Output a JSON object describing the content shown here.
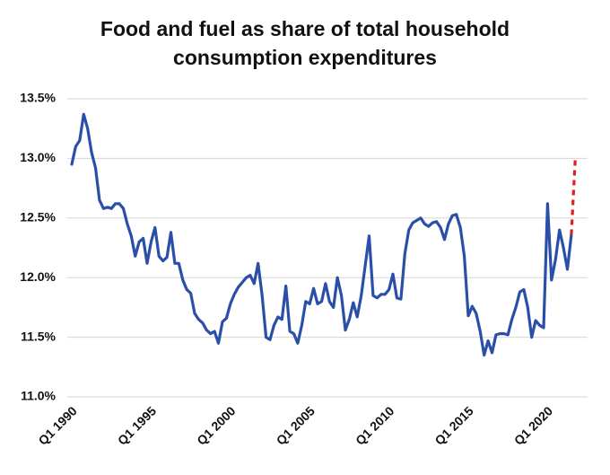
{
  "chart_data": {
    "type": "line",
    "title": "Food and fuel as share of total household consumption expenditures",
    "categories": [
      "Q1 1990",
      null,
      null,
      null,
      null,
      null,
      null,
      null,
      null,
      null,
      null,
      null,
      null,
      null,
      null,
      null,
      null,
      null,
      null,
      null,
      "Q1 1995",
      null,
      null,
      null,
      null,
      null,
      null,
      null,
      null,
      null,
      null,
      null,
      null,
      null,
      null,
      null,
      null,
      null,
      null,
      null,
      "Q1 2000",
      null,
      null,
      null,
      null,
      null,
      null,
      null,
      null,
      null,
      null,
      null,
      null,
      null,
      null,
      null,
      null,
      null,
      null,
      null,
      "Q1 2005",
      null,
      null,
      null,
      null,
      null,
      null,
      null,
      null,
      null,
      null,
      null,
      null,
      null,
      null,
      null,
      null,
      null,
      null,
      null,
      "Q1 2010",
      null,
      null,
      null,
      null,
      null,
      null,
      null,
      null,
      null,
      null,
      null,
      null,
      null,
      null,
      null,
      null,
      null,
      null,
      null,
      "Q1 2015",
      null,
      null,
      null,
      null,
      null,
      null,
      null,
      null,
      null,
      null,
      null,
      null,
      null,
      null,
      null,
      null,
      null,
      null,
      null,
      "Q1 2020",
      null,
      null,
      null,
      null,
      null,
      null,
      null
    ],
    "series": [
      {
        "color": "#2a4fa8",
        "dashed": false,
        "values": [
          12.95,
          13.1,
          13.15,
          13.37,
          13.25,
          13.05,
          12.92,
          12.65,
          12.58,
          12.59,
          12.58,
          12.62,
          12.62,
          12.58,
          12.45,
          12.35,
          12.18,
          12.3,
          12.33,
          12.12,
          12.3,
          12.42,
          12.18,
          12.14,
          12.17,
          12.38,
          12.12,
          12.12,
          11.98,
          11.9,
          11.87,
          11.7,
          11.65,
          11.62,
          11.56,
          11.53,
          11.55,
          11.45,
          11.63,
          11.66,
          11.78,
          11.86,
          11.92,
          11.96,
          12.0,
          12.02,
          11.95,
          12.12,
          11.85,
          11.5,
          11.48,
          11.6,
          11.67,
          11.65,
          11.93,
          11.55,
          11.53,
          11.45,
          11.6,
          11.8,
          11.78,
          11.91,
          11.78,
          11.8,
          11.95,
          11.8,
          11.75,
          12.0,
          11.85,
          11.56,
          11.65,
          11.79,
          11.67,
          11.85,
          12.1,
          12.35,
          11.85,
          11.83,
          11.86,
          11.86,
          11.9,
          12.03,
          11.83,
          11.82,
          12.2,
          12.4,
          12.46,
          12.48,
          12.5,
          12.45,
          12.43,
          12.46,
          12.47,
          12.42,
          12.32,
          12.45,
          12.52,
          12.53,
          12.42,
          12.18,
          11.68,
          11.76,
          11.7,
          11.55,
          11.35,
          11.47,
          11.37,
          11.52,
          11.53,
          11.53,
          11.52,
          11.65,
          11.75,
          11.88,
          11.9,
          11.75,
          11.5,
          11.64,
          11.6,
          11.58,
          12.62,
          11.98,
          12.15,
          12.4,
          12.25,
          12.07,
          12.36,
          null
        ]
      },
      {
        "color": "#e02020",
        "dashed": true,
        "values": [
          null,
          null,
          null,
          null,
          null,
          null,
          null,
          null,
          null,
          null,
          null,
          null,
          null,
          null,
          null,
          null,
          null,
          null,
          null,
          null,
          null,
          null,
          null,
          null,
          null,
          null,
          null,
          null,
          null,
          null,
          null,
          null,
          null,
          null,
          null,
          null,
          null,
          null,
          null,
          null,
          null,
          null,
          null,
          null,
          null,
          null,
          null,
          null,
          null,
          null,
          null,
          null,
          null,
          null,
          null,
          null,
          null,
          null,
          null,
          null,
          null,
          null,
          null,
          null,
          null,
          null,
          null,
          null,
          null,
          null,
          null,
          null,
          null,
          null,
          null,
          null,
          null,
          null,
          null,
          null,
          null,
          null,
          null,
          null,
          null,
          null,
          null,
          null,
          null,
          null,
          null,
          null,
          null,
          null,
          null,
          null,
          null,
          null,
          null,
          null,
          null,
          null,
          null,
          null,
          null,
          null,
          null,
          null,
          null,
          null,
          null,
          null,
          null,
          null,
          null,
          null,
          null,
          null,
          null,
          null,
          null,
          null,
          null,
          null,
          null,
          null,
          12.36,
          13.0
        ]
      }
    ],
    "ylim": [
      11.0,
      13.5
    ],
    "yticks": [
      {
        "value": 11.0,
        "label": "11.0%"
      },
      {
        "value": 11.5,
        "label": "11.5%"
      },
      {
        "value": 12.0,
        "label": "12.0%"
      },
      {
        "value": 12.5,
        "label": "12.5%"
      },
      {
        "value": 13.0,
        "label": "13.0%"
      },
      {
        "value": 13.5,
        "label": "13.5%"
      }
    ],
    "grid": true
  }
}
